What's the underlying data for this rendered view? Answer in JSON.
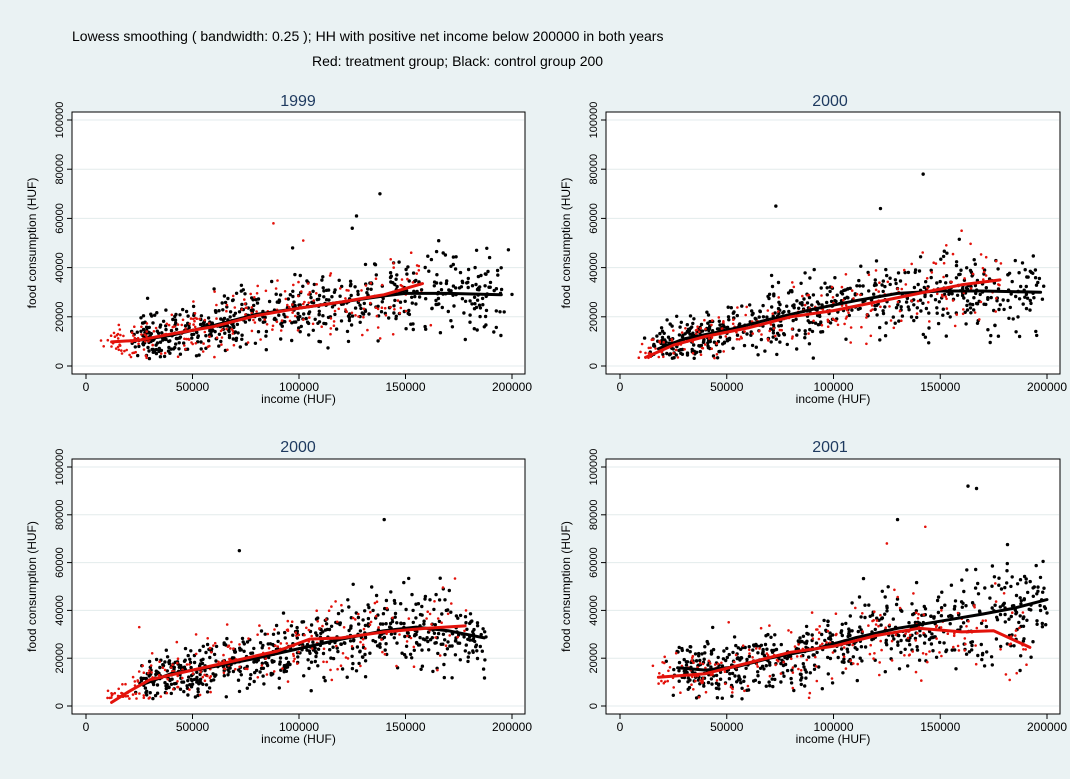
{
  "header": {
    "line1": "Lowess smoothing ( bandwidth: 0.25 ); HH with positive net income below 200000 in both years",
    "line2": "Red: treatment group; Black: control group 200"
  },
  "colors": {
    "background": "#eaf2f3",
    "panel": "#ffffff",
    "grid": "#e3ebec",
    "title": "#1e3a5f",
    "treatment": "#e3120b",
    "control": "#000000"
  },
  "chart_data": [
    {
      "type": "scatter",
      "title": "1999",
      "xlabel": "income (HUF)",
      "ylabel": "food consumption (HUF)",
      "xlim": [
        0,
        200000
      ],
      "ylim": [
        0,
        100000
      ],
      "xticks": [
        0,
        50000,
        100000,
        150000,
        200000
      ],
      "yticks": [
        0,
        20000,
        40000,
        60000,
        80000,
        100000
      ],
      "grid": true,
      "series": [
        {
          "role": "control",
          "color": "#000000",
          "point_count": 620,
          "lowess": [
            [
              25000,
              10500
            ],
            [
              40000,
              12500
            ],
            [
              60000,
              16500
            ],
            [
              80000,
              21000
            ],
            [
              100000,
              23500
            ],
            [
              120000,
              26000
            ],
            [
              140000,
              28500
            ],
            [
              150000,
              29500
            ],
            [
              170000,
              29500
            ],
            [
              195000,
              29000
            ]
          ],
          "highlights": [
            [
              138000,
              70000
            ],
            [
              127000,
              61000
            ],
            [
              125000,
              56000
            ],
            [
              97000,
              48000
            ]
          ]
        },
        {
          "role": "treatment",
          "color": "#e3120b",
          "point_count": 240,
          "lowess": [
            [
              12000,
              9800
            ],
            [
              25000,
              10500
            ],
            [
              40000,
              13000
            ],
            [
              60000,
              16000
            ],
            [
              80000,
              20500
            ],
            [
              100000,
              23500
            ],
            [
              120000,
              26000
            ],
            [
              140000,
              29000
            ],
            [
              158000,
              33500
            ]
          ],
          "highlights": [
            [
              88000,
              58000
            ],
            [
              102000,
              51000
            ]
          ]
        }
      ]
    },
    {
      "type": "scatter",
      "title": "2000",
      "xlabel": "income (HUF)",
      "ylabel": "food consumption (HUF)",
      "xlim": [
        0,
        200000
      ],
      "ylim": [
        0,
        100000
      ],
      "xticks": [
        0,
        50000,
        100000,
        150000,
        200000
      ],
      "yticks": [
        0,
        20000,
        40000,
        60000,
        80000,
        100000
      ],
      "grid": true,
      "series": [
        {
          "role": "control",
          "color": "#000000",
          "point_count": 620,
          "lowess": [
            [
              18000,
              7000
            ],
            [
              30000,
              11000
            ],
            [
              50000,
              14500
            ],
            [
              70000,
              19000
            ],
            [
              90000,
              23000
            ],
            [
              110000,
              26500
            ],
            [
              130000,
              29500
            ],
            [
              150000,
              30500
            ],
            [
              170000,
              30500
            ],
            [
              197000,
              30000
            ]
          ],
          "highlights": [
            [
              142000,
              78000
            ],
            [
              73000,
              65000
            ],
            [
              122000,
              64000
            ]
          ]
        },
        {
          "role": "treatment",
          "color": "#e3120b",
          "point_count": 240,
          "lowess": [
            [
              12000,
              3500
            ],
            [
              25000,
              8500
            ],
            [
              40000,
              12000
            ],
            [
              60000,
              15500
            ],
            [
              80000,
              20000
            ],
            [
              100000,
              22500
            ],
            [
              120000,
              26000
            ],
            [
              140000,
              29500
            ],
            [
              160000,
              33000
            ],
            [
              178000,
              35000
            ]
          ],
          "highlights": [
            [
              160000,
              55000
            ]
          ]
        }
      ]
    },
    {
      "type": "scatter",
      "title": "2000",
      "xlabel": "income (HUF)",
      "ylabel": "food consumption (HUF)",
      "xlim": [
        0,
        200000
      ],
      "ylim": [
        0,
        100000
      ],
      "xticks": [
        0,
        50000,
        100000,
        150000,
        200000
      ],
      "yticks": [
        0,
        20000,
        40000,
        60000,
        80000,
        100000
      ],
      "grid": true,
      "series": [
        {
          "role": "control",
          "color": "#000000",
          "point_count": 620,
          "lowess": [
            [
              28000,
              9500
            ],
            [
              40000,
              13500
            ],
            [
              60000,
              16500
            ],
            [
              80000,
              20000
            ],
            [
              100000,
              24000
            ],
            [
              120000,
              28000
            ],
            [
              140000,
              31500
            ],
            [
              155000,
              33000
            ],
            [
              170000,
              31500
            ],
            [
              187000,
              28500
            ]
          ],
          "highlights": [
            [
              140000,
              78000
            ],
            [
              72000,
              65000
            ]
          ]
        },
        {
          "role": "treatment",
          "color": "#e3120b",
          "point_count": 240,
          "lowess": [
            [
              12000,
              1500
            ],
            [
              20000,
              6000
            ],
            [
              30000,
              11000
            ],
            [
              50000,
              15000
            ],
            [
              70000,
              19000
            ],
            [
              90000,
              23000
            ],
            [
              105000,
              28000
            ],
            [
              120000,
              28500
            ],
            [
              140000,
              31000
            ],
            [
              160000,
              32500
            ],
            [
              178000,
              33500
            ]
          ],
          "highlights": [
            [
              25000,
              33000
            ]
          ]
        }
      ]
    },
    {
      "type": "scatter",
      "title": "2001",
      "xlabel": "income (HUF)",
      "ylabel": "food consumption (HUF)",
      "xlim": [
        0,
        200000
      ],
      "ylim": [
        0,
        100000
      ],
      "xticks": [
        0,
        50000,
        100000,
        150000,
        200000
      ],
      "yticks": [
        0,
        20000,
        40000,
        60000,
        80000,
        100000
      ],
      "grid": true,
      "series": [
        {
          "role": "control",
          "color": "#000000",
          "point_count": 620,
          "lowess": [
            [
              27000,
              16000
            ],
            [
              40000,
              15000
            ],
            [
              55000,
              16500
            ],
            [
              70000,
              20000
            ],
            [
              90000,
              23500
            ],
            [
              110000,
              28500
            ],
            [
              130000,
              32500
            ],
            [
              150000,
              35500
            ],
            [
              170000,
              38500
            ],
            [
              185000,
              41000
            ],
            [
              200000,
              44500
            ]
          ],
          "highlights": [
            [
              163000,
              92000
            ],
            [
              167000,
              91000
            ],
            [
              130000,
              78000
            ]
          ]
        },
        {
          "role": "treatment",
          "color": "#e3120b",
          "point_count": 240,
          "lowess": [
            [
              18000,
              12000
            ],
            [
              40000,
              13500
            ],
            [
              60000,
              18000
            ],
            [
              80000,
              22500
            ],
            [
              100000,
              25000
            ],
            [
              120000,
              29500
            ],
            [
              140000,
              32500
            ],
            [
              160000,
              31000
            ],
            [
              175000,
              31500
            ],
            [
              192000,
              24500
            ]
          ],
          "highlights": [
            [
              143000,
              75000
            ],
            [
              125000,
              68000
            ]
          ]
        }
      ]
    }
  ]
}
